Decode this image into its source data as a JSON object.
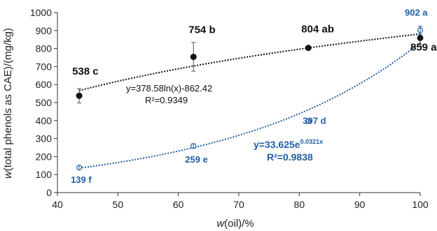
{
  "chart_data": {
    "type": "scatter",
    "xlabel": {
      "italic": "w",
      "rest": "(oil)/%"
    },
    "ylabel": {
      "italic": "w",
      "rest": "(total phenols as CAE)/(mg/kg)"
    },
    "xlim": [
      40,
      100
    ],
    "ylim": [
      0,
      1000
    ],
    "x_ticks": [
      "40",
      "50",
      "60",
      "70",
      "80",
      "90",
      "100"
    ],
    "y_ticks": [
      "0",
      "100",
      "200",
      "300",
      "400",
      "500",
      "600",
      "700",
      "800",
      "900",
      "1000"
    ],
    "grid": false,
    "series": [
      {
        "marker": "filled-circle",
        "color": "#111111",
        "x": [
          43.6,
          62.5,
          81.5,
          100
        ],
        "y": [
          538,
          754,
          804,
          859
        ],
        "error": [
          40,
          80,
          8,
          45
        ],
        "labels": [
          "538 c",
          "754 b",
          "804 ab",
          "859 a"
        ],
        "trendline": {
          "type": "logarithmic",
          "a": 378.58,
          "b": -862.42,
          "equation": "y=378.58ln(x)-862.42",
          "r2": "R²=0.9349"
        }
      },
      {
        "marker": "open-circle",
        "color": "#1f5fa8",
        "x": [
          43.6,
          62.5,
          81.5,
          100
        ],
        "y": [
          139,
          259,
          397,
          902
        ],
        "error": [
          6,
          12,
          6,
          22
        ],
        "labels": [
          "139 f",
          "259 e",
          "397 d",
          "902 a"
        ],
        "trendline": {
          "type": "exponential",
          "a": 33.625,
          "b": 0.0321,
          "equation_main": "y=33.625e",
          "equation_exp": "0.0321x",
          "r2": "R²=0.9838"
        }
      }
    ]
  }
}
